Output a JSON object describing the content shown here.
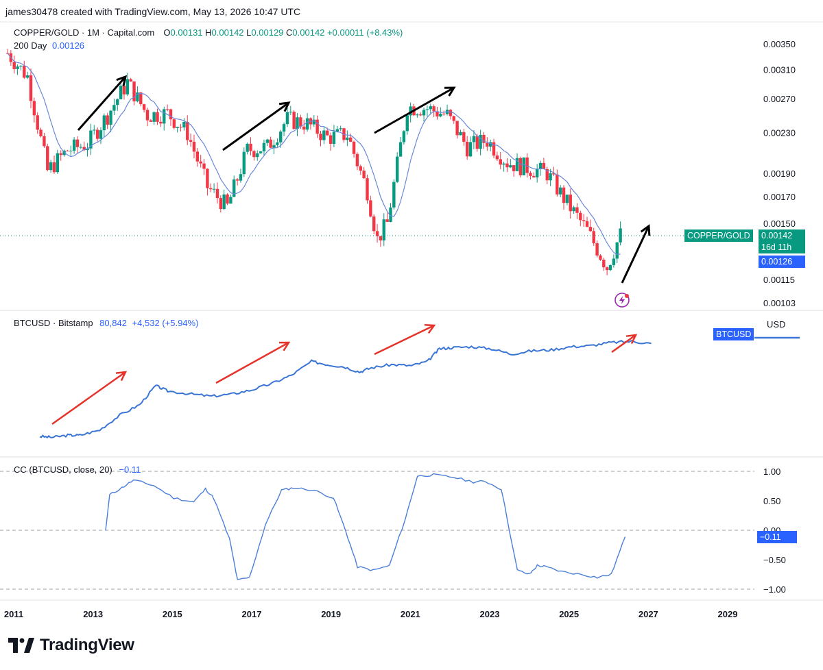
{
  "credit": "james30478 created with TradingView.com, May 13, 2026 10:47 UTC",
  "panes": {
    "main": {
      "legend": {
        "symbol": "COPPER/GOLD · 1M · Capital.com",
        "o_label": "O",
        "o_val": "0.00131",
        "h_label": "H",
        "h_val": "0.00142",
        "l_label": "L",
        "l_val": "0.00129",
        "c_label": "C",
        "c_val": "0.00142",
        "change": "+0.00011 (+8.43%)",
        "ma_label": "200 Day",
        "ma_val": "0.00126"
      },
      "y_ticks": [
        "0.00350",
        "0.00310",
        "0.00270",
        "0.00230",
        "0.00190",
        "0.00170",
        "0.00150",
        "0.00115",
        "0.00103"
      ],
      "tags": {
        "symbol_tag": "COPPER/GOLD",
        "price_tag": "0.00142",
        "countdown_tag": "16d 11h",
        "ma_tag": "0.00126"
      }
    },
    "btc": {
      "legend": {
        "symbol": "BTCUSD · Bitstamp",
        "value": "80,842",
        "change": "+4,532 (+5.94%)"
      },
      "tag": "BTCUSD",
      "unit": "USD"
    },
    "cc": {
      "legend": {
        "label": "CC (BTCUSD, close, 20)",
        "value": "−0.11"
      },
      "y_ticks": [
        "1.00",
        "0.50",
        "0.00",
        "−0.50",
        "−1.00"
      ],
      "tag": "−0.11"
    }
  },
  "x_ticks": [
    "2011",
    "2013",
    "2015",
    "2017",
    "2019",
    "2021",
    "2023",
    "2025",
    "2027",
    "2029"
  ],
  "brand": "TradingView",
  "colors": {
    "up": "#089981",
    "down": "#f23645",
    "ma": "#6c87d9",
    "btc": "#3a75d6",
    "cc": "#4a7fd9",
    "arrow_black": "#000000",
    "arrow_red": "#e5332a",
    "tag_blue": "#2962ff"
  },
  "chart_data": [
    {
      "type": "candlestick",
      "title": "COPPER/GOLD",
      "interval": "1M",
      "ylim": [
        0.00098,
        0.00362
      ],
      "x": [
        2011.0,
        2011.5,
        2012.0,
        2012.5,
        2013.0,
        2013.5,
        2014.0,
        2014.5,
        2015.0,
        2015.5,
        2016.0,
        2016.5,
        2017.0,
        2017.5,
        2018.0,
        2018.5,
        2019.0,
        2019.5,
        2020.0,
        2020.25,
        2020.5,
        2021.0,
        2021.5,
        2022.0,
        2022.5,
        2023.0,
        2023.5,
        2024.0,
        2024.5,
        2025.0,
        2025.5,
        2026.0,
        2026.33
      ],
      "close": [
        0.00335,
        0.003,
        0.00192,
        0.00212,
        0.00218,
        0.0025,
        0.00292,
        0.0025,
        0.00252,
        0.0023,
        0.00178,
        0.00162,
        0.00212,
        0.00215,
        0.00245,
        0.0024,
        0.00225,
        0.00228,
        0.00175,
        0.00139,
        0.0015,
        0.0026,
        0.00258,
        0.0025,
        0.00215,
        0.00222,
        0.002,
        0.00195,
        0.0019,
        0.00165,
        0.00145,
        0.00122,
        0.00142
      ],
      "ma_label": "200 Day",
      "ma_last": 0.00126
    },
    {
      "type": "line",
      "title": "BTCUSD",
      "last": 80842,
      "x": [
        2011.0,
        2011.3,
        2011.7,
        2012.0,
        2012.5,
        2013.0,
        2013.5,
        2013.9,
        2014.2,
        2014.8,
        2015.3,
        2015.8,
        2016.3,
        2016.8,
        2017.3,
        2017.8,
        2018.2,
        2018.6,
        2019.0,
        2019.3,
        2019.8,
        2020.3,
        2020.7,
        2021.0,
        2021.3,
        2021.8,
        2022.3,
        2022.8,
        2023.3,
        2023.8,
        2024.3,
        2024.8,
        2025.3,
        2025.8,
        2026.3
      ],
      "y": [
        0.02,
        0.01,
        0.03,
        0.03,
        0.08,
        0.22,
        0.32,
        0.5,
        0.45,
        0.42,
        0.4,
        0.42,
        0.46,
        0.52,
        0.6,
        0.73,
        0.7,
        0.68,
        0.63,
        0.67,
        0.7,
        0.69,
        0.73,
        0.85,
        0.86,
        0.87,
        0.85,
        0.8,
        0.83,
        0.84,
        0.87,
        0.88,
        0.91,
        0.92,
        0.9
      ],
      "y_units": "normalized",
      "annotations": [
        "red arrows indicating uptrends"
      ]
    },
    {
      "type": "line",
      "title": "CC (BTCUSD, close, 20)",
      "ylim": [
        -1.05,
        1.05
      ],
      "reference_lines": [
        1.0,
        0.0,
        -1.0
      ],
      "x": [
        2013.3,
        2013.4,
        2013.7,
        2014.0,
        2014.5,
        2015.0,
        2015.5,
        2015.8,
        2016.0,
        2016.4,
        2016.6,
        2016.9,
        2017.3,
        2017.7,
        2018.0,
        2018.5,
        2019.0,
        2019.3,
        2019.6,
        2020.0,
        2020.4,
        2020.8,
        2021.1,
        2021.5,
        2022.0,
        2022.5,
        2022.8,
        2023.2,
        2023.6,
        2023.9,
        2024.1,
        2024.3,
        2024.7,
        2025.2,
        2025.6,
        2025.95,
        2026.3
      ],
      "y": [
        0.0,
        0.6,
        0.72,
        0.85,
        0.76,
        0.55,
        0.48,
        0.7,
        0.55,
        -0.15,
        -0.85,
        -0.8,
        0.1,
        0.68,
        0.72,
        0.68,
        0.55,
        0.0,
        -0.62,
        -0.68,
        -0.6,
        0.2,
        0.92,
        0.94,
        0.9,
        0.82,
        0.83,
        0.7,
        -0.68,
        -0.75,
        -0.6,
        -0.62,
        -0.7,
        -0.75,
        -0.8,
        -0.75,
        -0.11
      ],
      "last": -0.11
    }
  ]
}
